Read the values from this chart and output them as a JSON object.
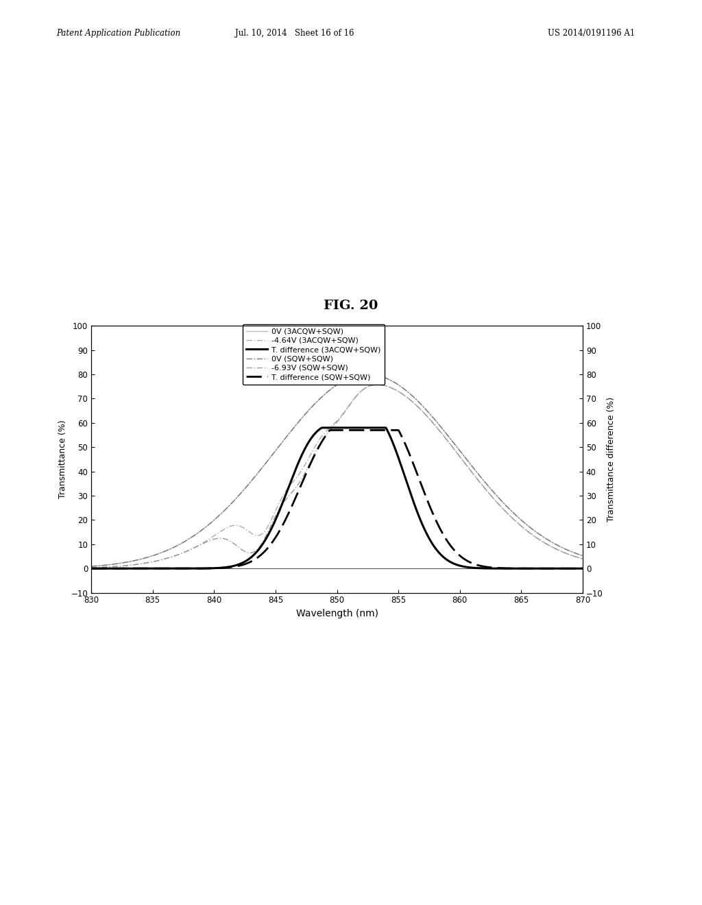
{
  "fig_title": "FIG. 20",
  "header_left": "Patent Application Publication",
  "header_mid": "Jul. 10, 2014   Sheet 16 of 16",
  "header_right": "US 2014/0191196 A1",
  "xlabel": "Wavelength (nm)",
  "ylabel_left": "Transmittance (%)",
  "ylabel_right": "Transmittance difference (%)",
  "xlim": [
    830,
    870
  ],
  "ylim": [
    -10,
    100
  ],
  "yticks": [
    -10,
    0,
    10,
    20,
    30,
    40,
    50,
    60,
    70,
    80,
    90,
    100
  ],
  "xticks": [
    830,
    835,
    840,
    845,
    850,
    855,
    860,
    865,
    870
  ],
  "background_color": "#ffffff",
  "c1_color": "#bbbbbb",
  "c2_color": "#aaaaaa",
  "c3_color": "#000000",
  "c4_color": "#777777",
  "c5_color": "#999999",
  "c6_color": "#000000",
  "legend_labels": [
    "0V (3ACQW+SQW)",
    "-4.64V (3ACQW+SQW)",
    "T. difference (3ACQW+SQW)",
    "0V (SQW+SQW)",
    "-6.93V (SQW+SQW)",
    "T. difference (SQW+SQW)"
  ]
}
